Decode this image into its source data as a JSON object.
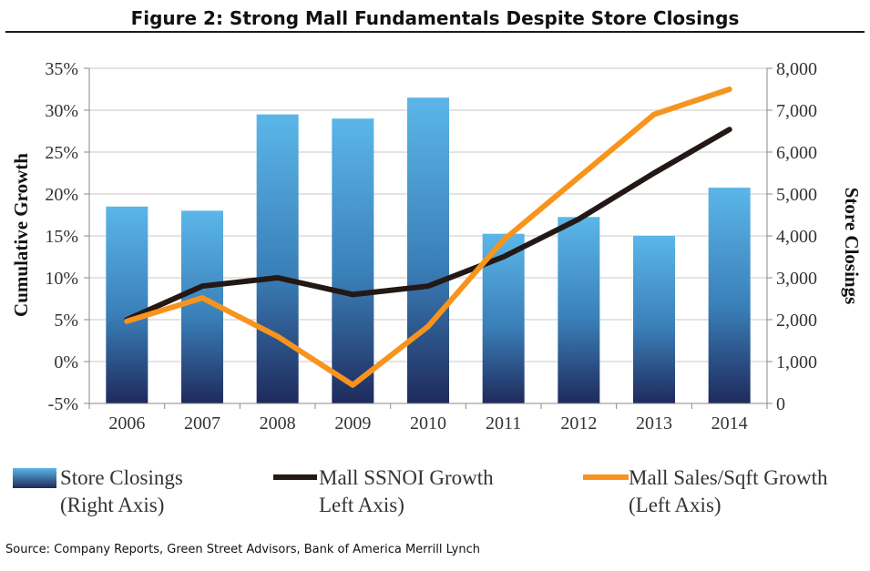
{
  "title": "Figure 2: Strong Mall Fundamentals Despite Store Closings",
  "source": "Source: Company Reports, Green Street Advisors, Bank of America Merrill Lynch",
  "legend": [
    {
      "line1": "Store Closings",
      "line2": "(Right Axis)"
    },
    {
      "line1": "Mall SSNOI Growth",
      "line2": "Left Axis)"
    },
    {
      "line1": "Mall Sales/Sqft Growth",
      "line2": "(Left Axis)"
    }
  ],
  "chart_data": {
    "type": "bar",
    "title": "Figure 2: Strong Mall Fundamentals Despite Store Closings",
    "categories": [
      "2006",
      "2007",
      "2008",
      "2009",
      "2010",
      "2011",
      "2012",
      "2013",
      "2014"
    ],
    "ylabel_left": "Cumulative Growth",
    "ylabel_right": "Store Closings",
    "y_left_ticks": [
      "-5%",
      "0%",
      "5%",
      "10%",
      "15%",
      "20%",
      "25%",
      "30%",
      "35%"
    ],
    "y_right_ticks": [
      "0",
      "1,000",
      "2,000",
      "3,000",
      "4,000",
      "5,000",
      "6,000",
      "7,000",
      "8,000"
    ],
    "ylim_left": [
      -5,
      35
    ],
    "ylim_right": [
      0,
      8000
    ],
    "grid": true,
    "legend_position": "bottom",
    "series": [
      {
        "name": "Store Closings (Right Axis)",
        "type": "bar",
        "axis": "right",
        "color": "#5bb6e8",
        "values": [
          4700,
          4600,
          6900,
          6800,
          7300,
          4050,
          4450,
          4000,
          5150
        ]
      },
      {
        "name": "Mall SSNOI Growth Left Axis)",
        "type": "line",
        "axis": "left",
        "color": "#231815",
        "values": [
          5.0,
          9.0,
          10.0,
          8.0,
          9.0,
          12.5,
          17.0,
          22.5,
          27.7
        ]
      },
      {
        "name": "Mall Sales/Sqft Growth (Left Axis)",
        "type": "line",
        "axis": "left",
        "color": "#f7941d",
        "values": [
          4.8,
          7.6,
          3.0,
          -2.8,
          4.2,
          14.5,
          22.0,
          29.5,
          32.5
        ]
      }
    ]
  }
}
